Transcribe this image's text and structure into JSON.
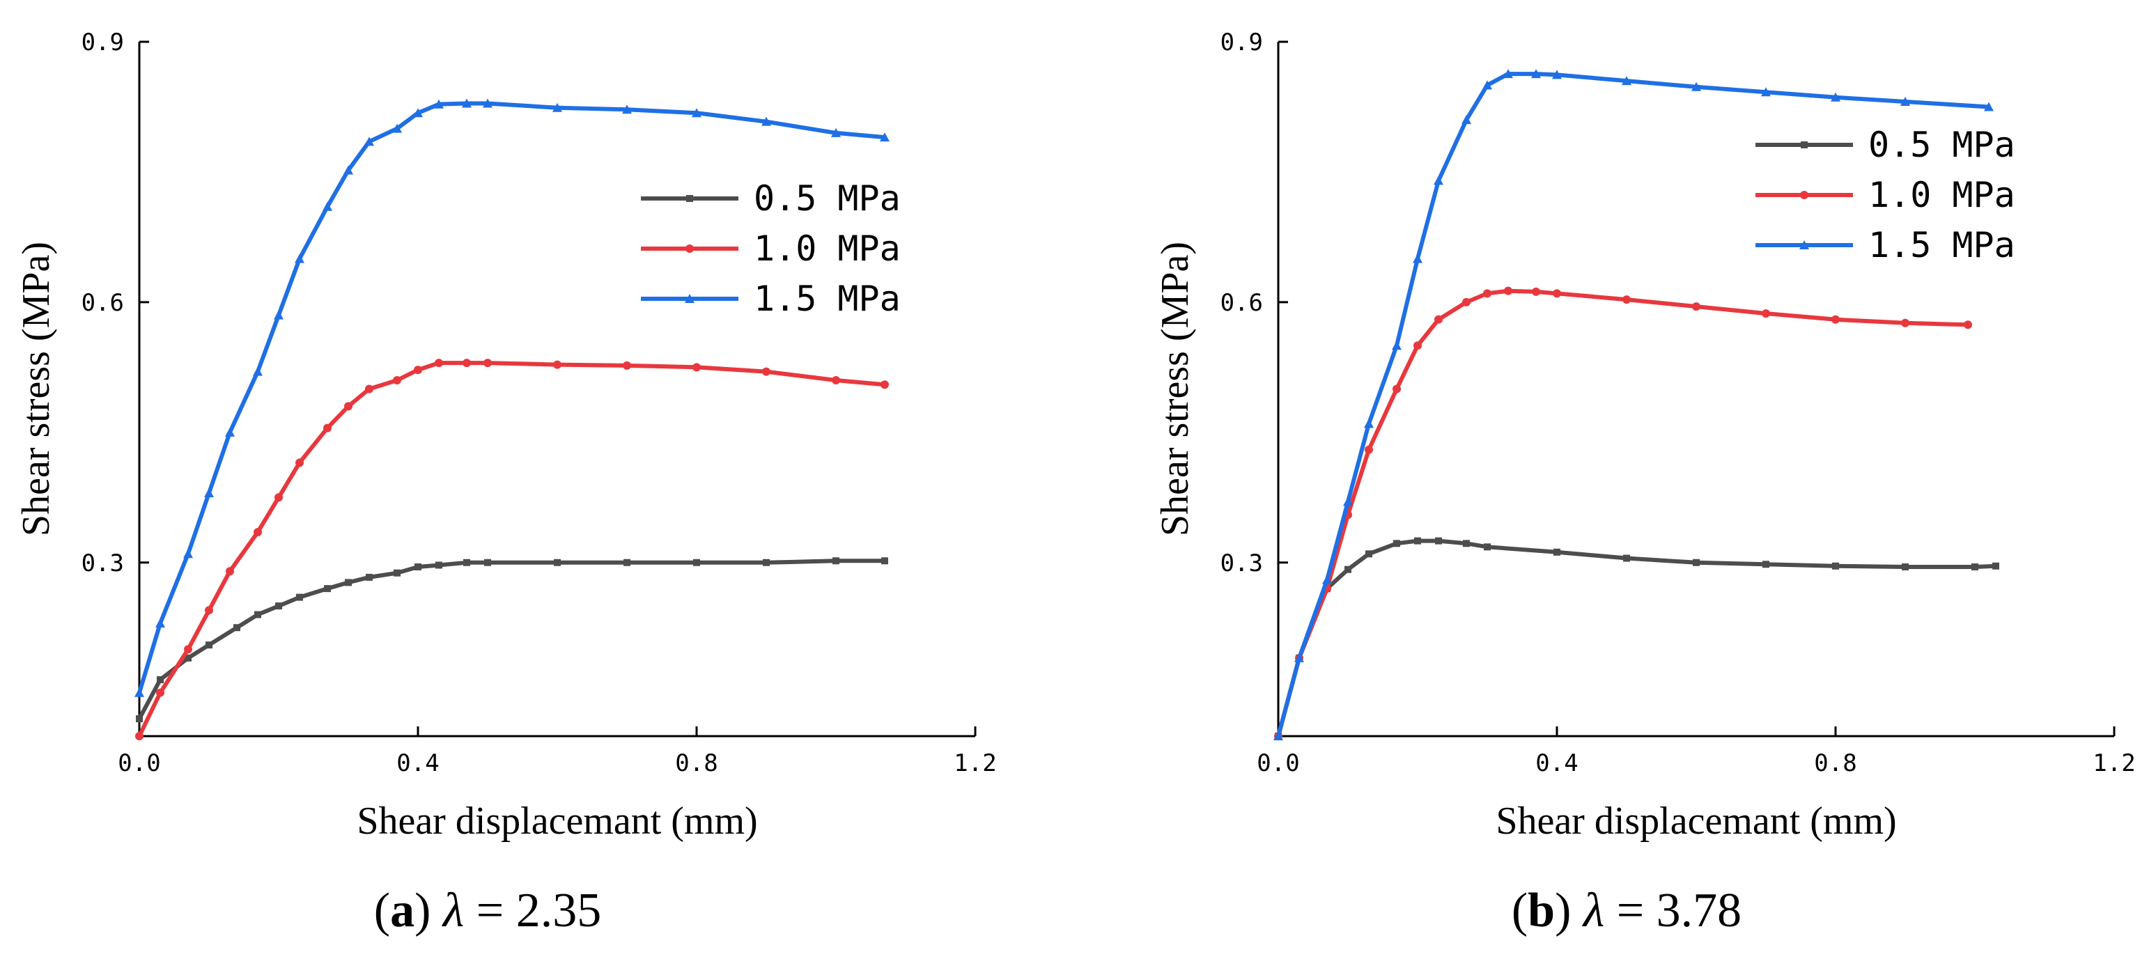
{
  "chart_data": [
    {
      "type": "line",
      "caption": {
        "letter": "a",
        "symbol": "λ",
        "value": "= 2.35"
      },
      "xlabel": "Shear displacemant (mm)",
      "ylabel": "Shear stress (MPa)",
      "xlim": [
        0.0,
        1.2
      ],
      "ylim": [
        0.1,
        0.9
      ],
      "xticks": [
        0.0,
        0.4,
        0.8,
        1.2
      ],
      "xtick_labels": [
        "0.0",
        "0.4",
        "0.8",
        "1.2"
      ],
      "yticks": [
        0.3,
        0.6,
        0.9
      ],
      "ytick_labels": [
        "0.3",
        "0.6",
        "0.9"
      ],
      "legend_position": "right",
      "series": [
        {
          "name": "0.5 MPa",
          "color": "#4d4d4d",
          "marker": "square",
          "x": [
            0.0,
            0.03,
            0.07,
            0.1,
            0.14,
            0.17,
            0.2,
            0.23,
            0.27,
            0.3,
            0.33,
            0.37,
            0.4,
            0.43,
            0.47,
            0.5,
            0.6,
            0.7,
            0.8,
            0.9,
            1.0,
            1.07
          ],
          "y": [
            0.12,
            0.165,
            0.19,
            0.205,
            0.225,
            0.24,
            0.25,
            0.26,
            0.27,
            0.277,
            0.283,
            0.288,
            0.295,
            0.297,
            0.3,
            0.3,
            0.3,
            0.3,
            0.3,
            0.3,
            0.302,
            0.302
          ]
        },
        {
          "name": "1.0 MPa",
          "color": "#e8383d",
          "marker": "circle",
          "x": [
            0.0,
            0.03,
            0.07,
            0.1,
            0.13,
            0.17,
            0.2,
            0.23,
            0.27,
            0.3,
            0.33,
            0.37,
            0.4,
            0.43,
            0.47,
            0.5,
            0.6,
            0.7,
            0.8,
            0.9,
            1.0,
            1.07
          ],
          "y": [
            0.1,
            0.15,
            0.2,
            0.245,
            0.29,
            0.335,
            0.375,
            0.415,
            0.455,
            0.48,
            0.5,
            0.51,
            0.522,
            0.53,
            0.53,
            0.53,
            0.528,
            0.527,
            0.525,
            0.52,
            0.51,
            0.505
          ]
        },
        {
          "name": "1.5 MPa",
          "color": "#1f6fe5",
          "marker": "triangle",
          "x": [
            0.0,
            0.03,
            0.07,
            0.1,
            0.13,
            0.17,
            0.2,
            0.23,
            0.27,
            0.3,
            0.33,
            0.37,
            0.4,
            0.43,
            0.47,
            0.5,
            0.6,
            0.7,
            0.8,
            0.9,
            1.0,
            1.07
          ],
          "y": [
            0.15,
            0.23,
            0.31,
            0.38,
            0.45,
            0.52,
            0.585,
            0.65,
            0.71,
            0.752,
            0.785,
            0.8,
            0.818,
            0.828,
            0.829,
            0.829,
            0.824,
            0.822,
            0.818,
            0.808,
            0.795,
            0.79
          ]
        }
      ]
    },
    {
      "type": "line",
      "caption": {
        "letter": "b",
        "symbol": "λ",
        "value": "= 3.78"
      },
      "xlabel": "Shear displacemant (mm)",
      "ylabel": "Shear stress (MPa)",
      "xlim": [
        0.0,
        1.2
      ],
      "ylim": [
        0.1,
        0.9
      ],
      "xticks": [
        0.0,
        0.4,
        0.8,
        1.2
      ],
      "xtick_labels": [
        "0.0",
        "0.4",
        "0.8",
        "1.2"
      ],
      "yticks": [
        0.3,
        0.6,
        0.9
      ],
      "ytick_labels": [
        "0.3",
        "0.6",
        "0.9"
      ],
      "legend_position": "top-right",
      "series": [
        {
          "name": "0.5 MPa",
          "color": "#4d4d4d",
          "marker": "square",
          "x": [
            0.0,
            0.03,
            0.07,
            0.1,
            0.13,
            0.17,
            0.2,
            0.23,
            0.27,
            0.3,
            0.4,
            0.5,
            0.6,
            0.7,
            0.8,
            0.9,
            1.0,
            1.03
          ],
          "y": [
            0.1,
            0.19,
            0.27,
            0.292,
            0.31,
            0.322,
            0.325,
            0.325,
            0.322,
            0.318,
            0.312,
            0.305,
            0.3,
            0.298,
            0.296,
            0.295,
            0.295,
            0.296
          ]
        },
        {
          "name": "1.0 MPa",
          "color": "#e8383d",
          "marker": "circle",
          "x": [
            0.0,
            0.03,
            0.07,
            0.1,
            0.13,
            0.17,
            0.2,
            0.23,
            0.27,
            0.3,
            0.33,
            0.37,
            0.4,
            0.5,
            0.6,
            0.7,
            0.8,
            0.9,
            0.99
          ],
          "y": [
            0.1,
            0.19,
            0.27,
            0.355,
            0.43,
            0.5,
            0.55,
            0.58,
            0.6,
            0.61,
            0.613,
            0.612,
            0.61,
            0.603,
            0.595,
            0.587,
            0.58,
            0.576,
            0.574
          ]
        },
        {
          "name": "1.5 MPa",
          "color": "#1f6fe5",
          "marker": "triangle",
          "x": [
            0.0,
            0.03,
            0.07,
            0.1,
            0.13,
            0.17,
            0.2,
            0.23,
            0.27,
            0.3,
            0.33,
            0.37,
            0.4,
            0.5,
            0.6,
            0.7,
            0.8,
            0.9,
            1.02
          ],
          "y": [
            0.1,
            0.19,
            0.28,
            0.37,
            0.46,
            0.55,
            0.65,
            0.74,
            0.81,
            0.85,
            0.863,
            0.863,
            0.862,
            0.855,
            0.848,
            0.842,
            0.836,
            0.831,
            0.825
          ]
        }
      ]
    }
  ]
}
